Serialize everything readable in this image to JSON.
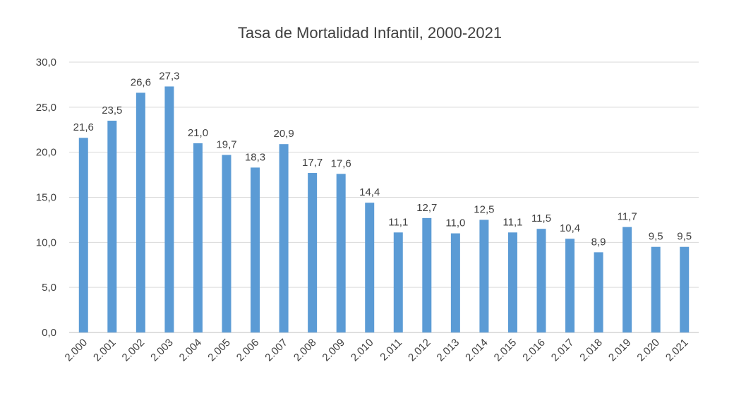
{
  "chart_data": {
    "type": "bar",
    "title": "Tasa de Mortalidad Infantil, 2000-2021",
    "xlabel": "",
    "ylabel": "",
    "ylim": [
      0,
      30
    ],
    "yticks": [
      "0,0",
      "5,0",
      "10,0",
      "15,0",
      "20,0",
      "25,0",
      "30,0"
    ],
    "grid": true,
    "legend": "none",
    "bar_color": "#5b9bd5",
    "categories": [
      "2.000",
      "2.001",
      "2.002",
      "2.003",
      "2.004",
      "2.005",
      "2.006",
      "2.007",
      "2.008",
      "2.009",
      "2.010",
      "2.011",
      "2.012",
      "2.013",
      "2.014",
      "2.015",
      "2.016",
      "2.017",
      "2.018",
      "2.019",
      "2.020",
      "2.021"
    ],
    "values": [
      21.6,
      23.5,
      26.6,
      27.3,
      21.0,
      19.7,
      18.3,
      20.9,
      17.7,
      17.6,
      14.4,
      11.1,
      12.7,
      11.0,
      12.5,
      11.1,
      11.5,
      10.4,
      8.9,
      11.7,
      9.5,
      9.5
    ],
    "data_labels": [
      "21,6",
      "23,5",
      "26,6",
      "27,3",
      "21,0",
      "19,7",
      "18,3",
      "20,9",
      "17,7",
      "17,6",
      "14,4",
      "11,1",
      "12,7",
      "11,0",
      "12,5",
      "11,1",
      "11,5",
      "10,4",
      "8,9",
      "11,7",
      "9,5",
      "9,5"
    ]
  }
}
